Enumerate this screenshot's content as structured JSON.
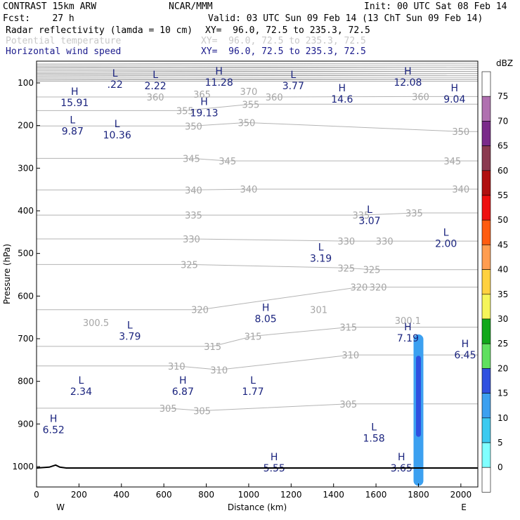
{
  "header": {
    "line1_left": "CONTRAST 15km ARW",
    "line1_mid": "NCAR/MMM",
    "line1_right": "Init: 00 UTC Sat 08 Feb 14",
    "line2_left": "Fcst:    27 h",
    "line2_right": "Valid: 03 UTC Sun 09 Feb 14 (13 ChT Sun 09 Feb 14)"
  },
  "legend": [
    {
      "label": "Radar reflectivity (lamda = 10 cm)",
      "xy": "XY=  96.0, 72.5 to 235.3, 72.5",
      "color": "#000000"
    },
    {
      "label": "Potential temperature",
      "xy": "XY=  96.0, 72.5 to 235.3, 72.5",
      "color": "#c8c8c8"
    },
    {
      "label": "Horizontal wind speed",
      "xy": "XY=  96.0, 72.5 to 235.3, 72.5",
      "color": "#1a1a8c"
    }
  ],
  "axes": {
    "ylabel": "Pressure (hPa)",
    "xlabel": "Distance (km)",
    "yticks": [
      "100",
      "200",
      "300",
      "400",
      "500",
      "600",
      "700",
      "800",
      "900",
      "1000"
    ],
    "xticks": [
      "0",
      "200",
      "400",
      "600",
      "800",
      "1000",
      "1200",
      "1400",
      "1600",
      "1800",
      "2000"
    ],
    "west": "W",
    "east": "E"
  },
  "colorbar": {
    "unit": "dBZ",
    "levels": [
      "75",
      "70",
      "65",
      "60",
      "55",
      "50",
      "45",
      "40",
      "35",
      "30",
      "25",
      "20",
      "15",
      "10",
      "5",
      "0"
    ],
    "colors": [
      "#ffffff",
      "#b070b0",
      "#7a2a8a",
      "#8b3a50",
      "#b01010",
      "#ee1010",
      "#ff5c10",
      "#ff9d50",
      "#ffd140",
      "#f5f55a",
      "#11a81a",
      "#5fe05f",
      "#3050e0",
      "#3ca0f0",
      "#3ccaf0",
      "#80ffff",
      "#ffffff"
    ]
  },
  "chart_data": {
    "type": "cross-section",
    "x_unit": "km",
    "y_unit": "hPa",
    "xlim": [
      0,
      2080
    ],
    "ylim": [
      1050,
      50
    ],
    "y_scale": "log-pressure",
    "theta_contours": [
      {
        "value": 305,
        "labels": [
          [
            620,
            863
          ],
          [
            780,
            869
          ],
          [
            1470,
            853
          ]
        ]
      },
      {
        "value": 310,
        "labels": [
          [
            660,
            764
          ],
          [
            860,
            773
          ],
          [
            1480,
            738
          ]
        ]
      },
      {
        "value": 315,
        "labels": [
          [
            830,
            718
          ],
          [
            1020,
            694
          ],
          [
            1470,
            673
          ]
        ]
      },
      {
        "value": 320,
        "labels": [
          [
            770,
            632
          ],
          [
            1520,
            579
          ],
          [
            1610,
            579
          ]
        ]
      },
      {
        "value": 325,
        "labels": [
          [
            720,
            526
          ],
          [
            1460,
            534
          ],
          [
            1580,
            538
          ]
        ]
      },
      {
        "value": 330,
        "labels": [
          [
            730,
            466
          ],
          [
            1460,
            471
          ],
          [
            1640,
            471
          ]
        ]
      },
      {
        "value": 335,
        "labels": [
          [
            740,
            410
          ],
          [
            1530,
            410
          ],
          [
            1780,
            405
          ]
        ]
      },
      {
        "value": 340,
        "labels": [
          [
            740,
            351
          ],
          [
            1000,
            349
          ],
          [
            2000,
            349
          ]
        ]
      },
      {
        "value": 345,
        "labels": [
          [
            730,
            277
          ],
          [
            900,
            283
          ],
          [
            1960,
            283
          ]
        ]
      },
      {
        "value": 350,
        "labels": [
          [
            740,
            201
          ],
          [
            990,
            193
          ],
          [
            2000,
            214
          ]
        ]
      },
      {
        "value": 355,
        "labels": [
          [
            700,
            165
          ],
          [
            1010,
            150
          ]
        ]
      },
      {
        "value": 360,
        "labels": [
          [
            560,
            133
          ],
          [
            1120,
            133
          ],
          [
            1810,
            132
          ]
        ]
      },
      {
        "value": 365,
        "labels": [
          [
            780,
            126
          ]
        ]
      },
      {
        "value": 370,
        "labels": [
          [
            1000,
            120
          ]
        ]
      },
      {
        "value": 301,
        "labels": [
          [
            1330,
            632
          ]
        ]
      },
      {
        "value": 300.5,
        "labels": [
          [
            280,
            662
          ]
        ]
      },
      {
        "value": 300.1,
        "labels": [
          [
            1750,
            657
          ]
        ]
      }
    ],
    "wind_extrema": [
      {
        "type": "L",
        "value": ".22",
        "x": 370,
        "p": 95
      },
      {
        "type": "L",
        "value": "2.22",
        "x": 560,
        "p": 98
      },
      {
        "type": "H",
        "value": "11.28",
        "x": 860,
        "p": 90
      },
      {
        "type": "L",
        "value": "3.77",
        "x": 1210,
        "p": 98
      },
      {
        "type": "H",
        "value": "12.08",
        "x": 1750,
        "p": 90
      },
      {
        "type": "H",
        "value": "15.91",
        "x": 180,
        "p": 138
      },
      {
        "type": "H",
        "value": "14.6",
        "x": 1440,
        "p": 130
      },
      {
        "type": "H",
        "value": "9.04",
        "x": 1970,
        "p": 130
      },
      {
        "type": "H",
        "value": "19.13",
        "x": 790,
        "p": 162
      },
      {
        "type": "L",
        "value": "9.87",
        "x": 170,
        "p": 205
      },
      {
        "type": "L",
        "value": "10.36",
        "x": 380,
        "p": 214
      },
      {
        "type": "L",
        "value": "3.07",
        "x": 1570,
        "p": 415
      },
      {
        "type": "L",
        "value": "2.00",
        "x": 1930,
        "p": 468
      },
      {
        "type": "L",
        "value": "3.19",
        "x": 1340,
        "p": 503
      },
      {
        "type": "H",
        "value": "8.05",
        "x": 1080,
        "p": 645
      },
      {
        "type": "L",
        "value": "3.79",
        "x": 440,
        "p": 686
      },
      {
        "type": "H",
        "value": "7.19",
        "x": 1750,
        "p": 690
      },
      {
        "type": "H",
        "value": "6.45",
        "x": 2020,
        "p": 730
      },
      {
        "type": "L",
        "value": "2.34",
        "x": 210,
        "p": 815
      },
      {
        "type": "H",
        "value": "6.87",
        "x": 690,
        "p": 815
      },
      {
        "type": "L",
        "value": "1.77",
        "x": 1020,
        "p": 815
      },
      {
        "type": "H",
        "value": "6.52",
        "x": 80,
        "p": 905
      },
      {
        "type": "L",
        "value": "1.58",
        "x": 1590,
        "p": 925
      },
      {
        "type": "H",
        "value": "5.55",
        "x": 1120,
        "p": 995
      },
      {
        "type": "H",
        "value": "3.65",
        "x": 1720,
        "p": 995
      }
    ],
    "reflectivity": [
      {
        "x": 1800,
        "p_top": 690,
        "p_bottom": 1045,
        "dbz": 10
      },
      {
        "x": 1800,
        "p_top": 740,
        "p_bottom": 930,
        "dbz": 15
      }
    ]
  }
}
